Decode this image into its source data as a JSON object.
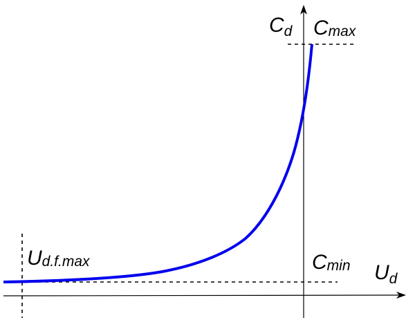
{
  "labels": {
    "y_axis": {
      "main": "C",
      "sub": "d"
    },
    "x_axis": {
      "main": "U",
      "sub": "d"
    },
    "c_max": {
      "main": "C",
      "sub": "max"
    },
    "c_min": {
      "main": "C",
      "sub": "min"
    },
    "u_limit": {
      "main": "U",
      "sub": "d.f.max"
    }
  },
  "colors": {
    "curve": "#0000ee",
    "axes": "#000000"
  }
}
